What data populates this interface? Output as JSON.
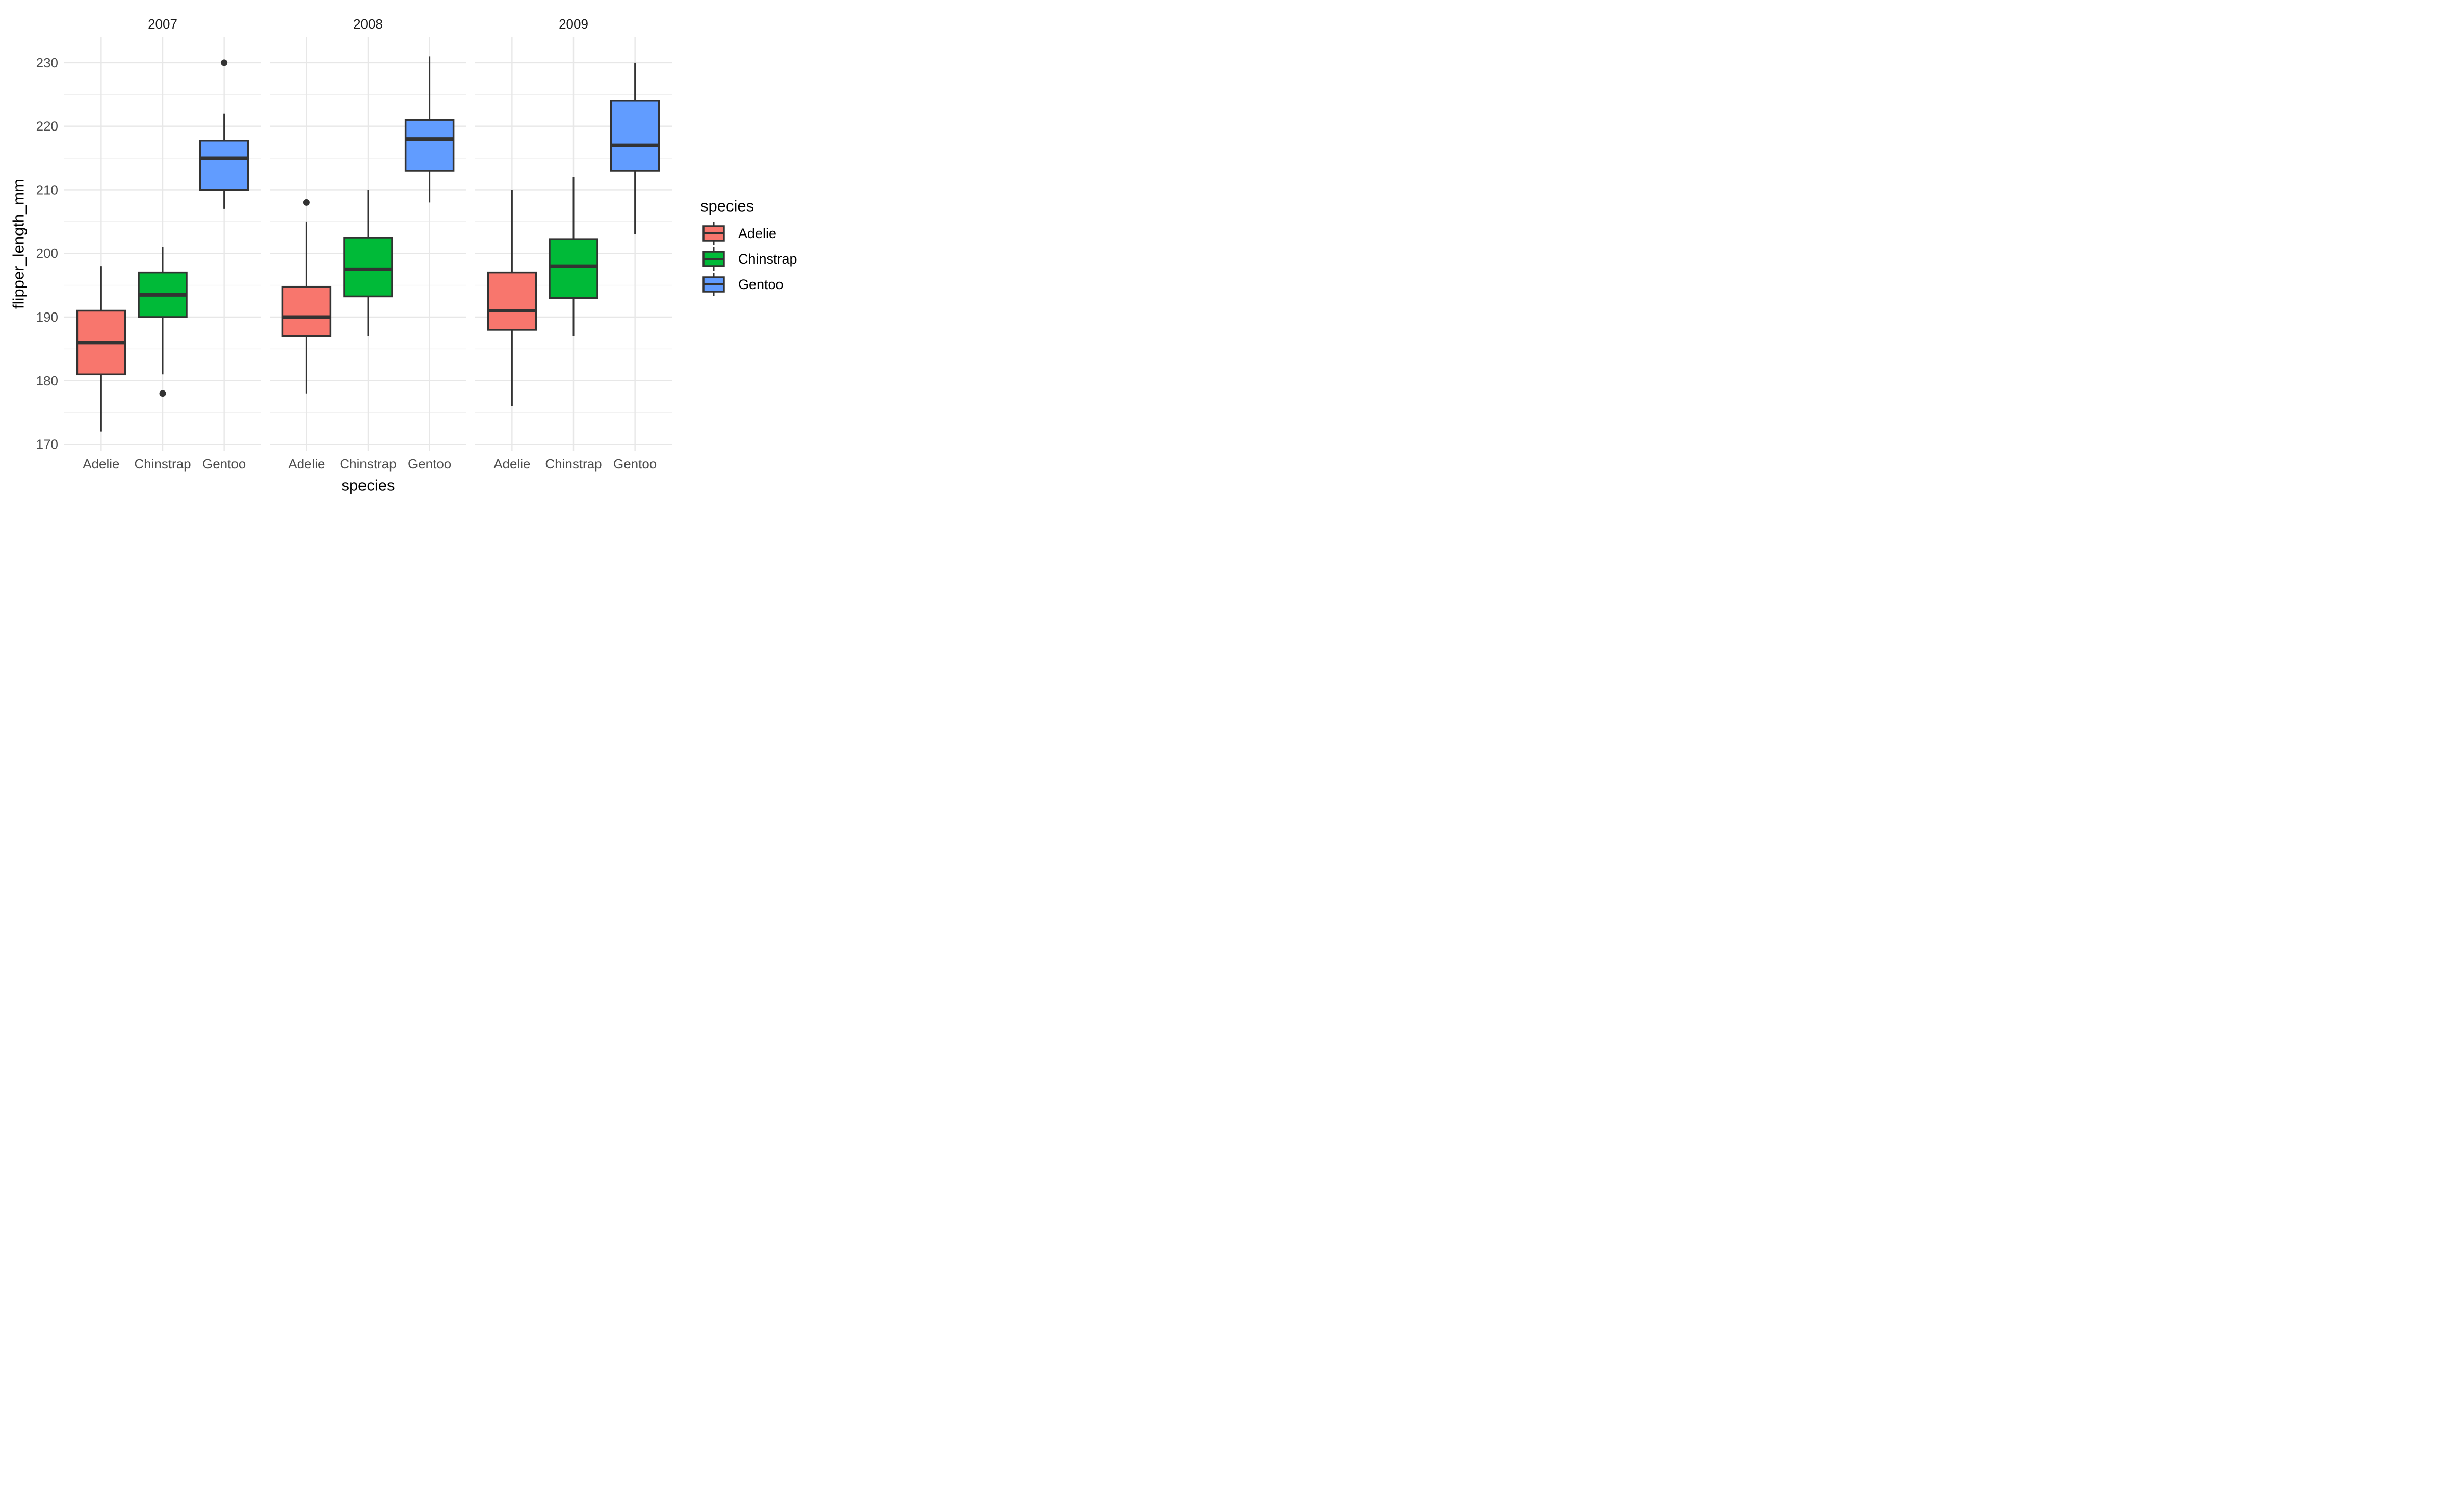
{
  "chart_data": {
    "type": "boxplot",
    "faceted_by": "year",
    "facets": [
      "2007",
      "2008",
      "2009"
    ],
    "categories": [
      "Adelie",
      "Chinstrap",
      "Gentoo"
    ],
    "xlabel": "species",
    "ylabel": "flipper_length_mm",
    "y_ticks": [
      230,
      220,
      210,
      200,
      190,
      180,
      170
    ],
    "y_minor_ticks": [
      225,
      215,
      205,
      195,
      185,
      175
    ],
    "ylim": [
      169,
      234
    ],
    "grid": "major-and-minor-horizontal, major-vertical-at-categories",
    "legend": {
      "title": "species",
      "position": "right",
      "entries": [
        {
          "label": "Adelie",
          "color": "#F8766D"
        },
        {
          "label": "Chinstrap",
          "color": "#00BA38"
        },
        {
          "label": "Gentoo",
          "color": "#619CFF"
        }
      ]
    },
    "style": {
      "background": "#FFFFFF",
      "box_outline": "#333333",
      "median_color": "#333333",
      "whisker_color": "#333333",
      "outlier_color": "#333333",
      "grid_major": "#E7E7E7",
      "grid_minor": "#F0F0F0",
      "axis_text_color": "#4D4D4D",
      "strip_text_color": "#1A1A1A",
      "axis_title_color": "#000000"
    },
    "boxes": [
      {
        "facet": "2007",
        "species": "Adelie",
        "color": "#F8766D",
        "whisker_low": 172,
        "q1": 181,
        "median": 186,
        "q3": 191,
        "whisker_high": 198,
        "outliers": []
      },
      {
        "facet": "2007",
        "species": "Chinstrap",
        "color": "#00BA38",
        "whisker_low": 181,
        "q1": 190,
        "median": 193.5,
        "q3": 197,
        "whisker_high": 201,
        "outliers": [
          178
        ]
      },
      {
        "facet": "2007",
        "species": "Gentoo",
        "color": "#619CFF",
        "whisker_low": 207,
        "q1": 210,
        "median": 215,
        "q3": 217.75,
        "whisker_high": 222,
        "outliers": [
          230
        ]
      },
      {
        "facet": "2008",
        "species": "Adelie",
        "color": "#F8766D",
        "whisker_low": 178,
        "q1": 187,
        "median": 190,
        "q3": 194.75,
        "whisker_high": 205,
        "outliers": [
          208
        ]
      },
      {
        "facet": "2008",
        "species": "Chinstrap",
        "color": "#00BA38",
        "whisker_low": 187,
        "q1": 193.25,
        "median": 197.5,
        "q3": 202.5,
        "whisker_high": 210,
        "outliers": []
      },
      {
        "facet": "2008",
        "species": "Gentoo",
        "color": "#619CFF",
        "whisker_low": 208,
        "q1": 213,
        "median": 218,
        "q3": 221,
        "whisker_high": 231,
        "outliers": []
      },
      {
        "facet": "2009",
        "species": "Adelie",
        "color": "#F8766D",
        "whisker_low": 176,
        "q1": 188,
        "median": 191,
        "q3": 197,
        "whisker_high": 210,
        "outliers": []
      },
      {
        "facet": "2009",
        "species": "Chinstrap",
        "color": "#00BA38",
        "whisker_low": 187,
        "q1": 193,
        "median": 198,
        "q3": 202.25,
        "whisker_high": 212,
        "outliers": []
      },
      {
        "facet": "2009",
        "species": "Gentoo",
        "color": "#619CFF",
        "whisker_low": 203,
        "q1": 213,
        "median": 217,
        "q3": 224,
        "whisker_high": 230,
        "outliers": []
      }
    ]
  }
}
